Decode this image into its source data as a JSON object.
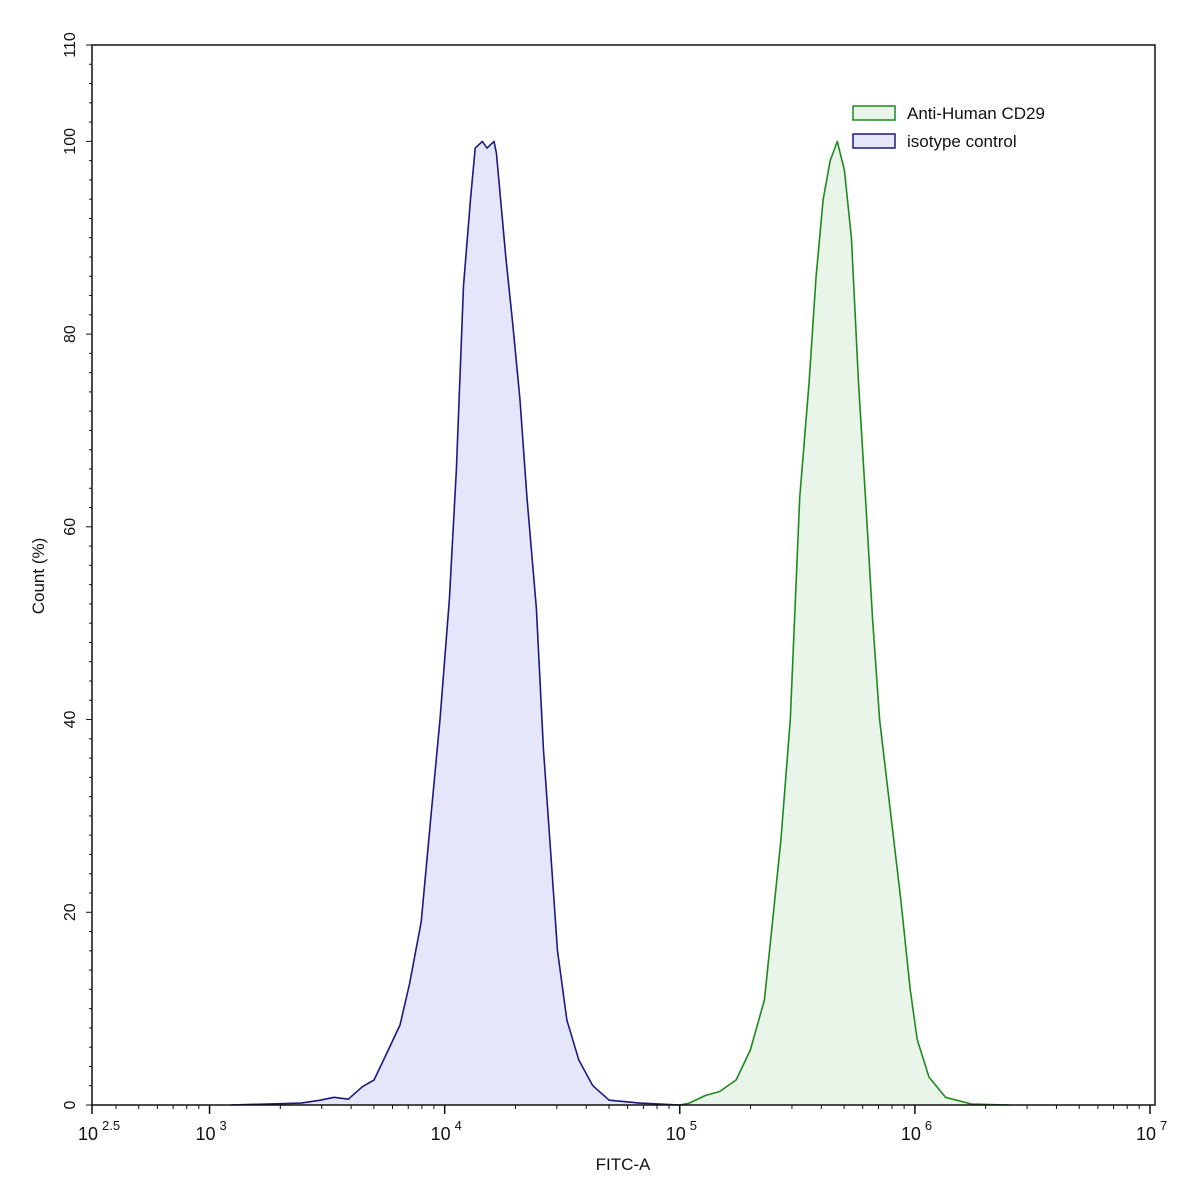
{
  "chart_data": {
    "type": "area",
    "title": "",
    "xlabel": "FITC-A",
    "ylabel": "Count  (%)",
    "x_scale": "log10",
    "xlim_log10": [
      2.5,
      7
    ],
    "ylim": [
      0,
      110
    ],
    "x_ticks": [
      {
        "log10": 2.5,
        "base": "10",
        "exp": "2.5"
      },
      {
        "log10": 3,
        "base": "10",
        "exp": "3"
      },
      {
        "log10": 4,
        "base": "10",
        "exp": "4"
      },
      {
        "log10": 5,
        "base": "10",
        "exp": "5"
      },
      {
        "log10": 6,
        "base": "10",
        "exp": "6"
      },
      {
        "log10": 7,
        "base": "10",
        "exp": "7"
      }
    ],
    "y_ticks": [
      0,
      20,
      40,
      60,
      80,
      100,
      110
    ],
    "grid": false,
    "legend_position": "top-right",
    "series": [
      {
        "name": "Anti-Human CD29",
        "stroke": "#1e8a1e",
        "fill": "#e8f5e8",
        "log10_x": [
          5.0,
          5.04,
          5.11,
          5.17,
          5.24,
          5.3,
          5.36,
          5.39,
          5.43,
          5.47,
          5.51,
          5.55,
          5.58,
          5.61,
          5.64,
          5.67,
          5.7,
          5.73,
          5.76,
          5.79,
          5.82,
          5.85,
          5.9,
          5.94,
          5.98,
          6.01,
          6.06,
          6.13,
          6.24,
          6.4
        ],
        "y": [
          0,
          0.2,
          1.0,
          1.4,
          2.6,
          5.7,
          10.9,
          18,
          27.5,
          40,
          63,
          75,
          86,
          94,
          98,
          100,
          97,
          90,
          75,
          63,
          50.4,
          40,
          29.6,
          21.3,
          12,
          6.8,
          2.9,
          0.8,
          0.1,
          0
        ]
      },
      {
        "name": "isotype control",
        "stroke": "#1a1a80",
        "fill": "#e6e6fa",
        "log10_x": [
          3.09,
          3.39,
          3.47,
          3.53,
          3.59,
          3.65,
          3.7,
          3.76,
          3.81,
          3.85,
          3.9,
          3.94,
          3.98,
          4.02,
          4.05,
          4.08,
          4.11,
          4.13,
          4.16,
          4.18,
          4.21,
          4.22,
          4.26,
          4.29,
          4.32,
          4.35,
          4.39,
          4.42,
          4.45,
          4.48,
          4.52,
          4.57,
          4.63,
          4.7,
          4.83,
          5.0
        ],
        "y": [
          0,
          0.2,
          0.5,
          0.8,
          0.6,
          1.9,
          2.6,
          5.7,
          8.3,
          12.5,
          19,
          29.6,
          40,
          52.5,
          66,
          85,
          94,
          99.3,
          100,
          99.3,
          100,
          98.8,
          88,
          81,
          73.3,
          63,
          51.5,
          37,
          26.5,
          16,
          8.8,
          4.7,
          2,
          0.5,
          0.2,
          0
        ]
      }
    ]
  }
}
